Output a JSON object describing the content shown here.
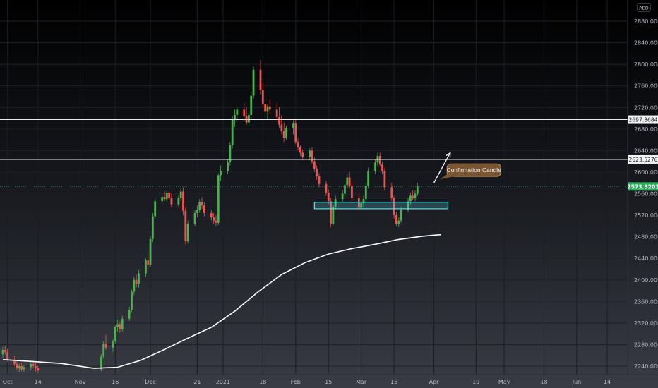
{
  "currency_label": "AED",
  "chart_data": {
    "type": "candlestick",
    "ylim": [
      2225,
      2905
    ],
    "y_ticks": [
      2880,
      2840,
      2800,
      2760,
      2720,
      2680,
      2640,
      2600,
      2560,
      2520,
      2480,
      2440,
      2400,
      2360,
      2320,
      2280,
      2240
    ],
    "x_ticks": [
      {
        "date": "2020-10-01",
        "label": "Oct"
      },
      {
        "date": "2020-10-14",
        "label": "14"
      },
      {
        "date": "2020-11-01",
        "label": "Nov"
      },
      {
        "date": "2020-11-16",
        "label": "16"
      },
      {
        "date": "2020-12-01",
        "label": "Dec"
      },
      {
        "date": "2020-12-21",
        "label": "21"
      },
      {
        "date": "2021-01-01",
        "label": "2021"
      },
      {
        "date": "2021-01-18",
        "label": "18"
      },
      {
        "date": "2021-02-01",
        "label": "Feb"
      },
      {
        "date": "2021-02-15",
        "label": "15"
      },
      {
        "date": "2021-03-01",
        "label": "Mar"
      },
      {
        "date": "2021-03-15",
        "label": "15"
      },
      {
        "date": "2021-04-01",
        "label": "Apr"
      },
      {
        "date": "2021-04-19",
        "label": "19"
      },
      {
        "date": "2021-05-01",
        "label": "May"
      },
      {
        "date": "2021-05-18",
        "label": "18"
      },
      {
        "date": "2021-06-01",
        "label": "Jun"
      },
      {
        "date": "2021-06-14",
        "label": "14"
      }
    ],
    "ohlc_dates": [
      "2020-09-29",
      "2020-09-30",
      "2020-10-01",
      "2020-10-04",
      "2020-10-05",
      "2020-10-06",
      "2020-10-07",
      "2020-10-08",
      "2020-10-11",
      "2020-10-12",
      "2020-10-13",
      "2020-10-14",
      "2020-11-10",
      "2020-11-11",
      "2020-11-12",
      "2020-11-15",
      "2020-11-16",
      "2020-11-17",
      "2020-11-18",
      "2020-11-19",
      "2020-11-22",
      "2020-11-23",
      "2020-11-24",
      "2020-11-25",
      "2020-11-26",
      "2020-11-29",
      "2020-11-30",
      "2020-12-01",
      "2020-12-02",
      "2020-12-03",
      "2020-12-06",
      "2020-12-07",
      "2020-12-08",
      "2020-12-09",
      "2020-12-10",
      "2020-12-13",
      "2020-12-14",
      "2020-12-15",
      "2020-12-16",
      "2020-12-17",
      "2020-12-20",
      "2020-12-21",
      "2020-12-22",
      "2020-12-23",
      "2020-12-24",
      "2020-12-27",
      "2020-12-28",
      "2020-12-29",
      "2020-12-30",
      "2020-12-31",
      "2021-01-03",
      "2021-01-04",
      "2021-01-05",
      "2021-01-06",
      "2021-01-07",
      "2021-01-10",
      "2021-01-11",
      "2021-01-12",
      "2021-01-13",
      "2021-01-14",
      "2021-01-17",
      "2021-01-18",
      "2021-01-19",
      "2021-01-20",
      "2021-01-21",
      "2021-01-24",
      "2021-01-25",
      "2021-01-26",
      "2021-01-27",
      "2021-01-28",
      "2021-01-31",
      "2021-02-01",
      "2021-02-02",
      "2021-02-03",
      "2021-02-04",
      "2021-02-07",
      "2021-02-08",
      "2021-02-09",
      "2021-02-10",
      "2021-02-11",
      "2021-02-14",
      "2021-02-15",
      "2021-02-16",
      "2021-02-17",
      "2021-02-18",
      "2021-02-21",
      "2021-02-22",
      "2021-02-23",
      "2021-02-24",
      "2021-02-25",
      "2021-02-28",
      "2021-03-01",
      "2021-03-02",
      "2021-03-03",
      "2021-03-04",
      "2021-03-07",
      "2021-03-08",
      "2021-03-09",
      "2021-03-10",
      "2021-03-11",
      "2021-03-14",
      "2021-03-15",
      "2021-03-16",
      "2021-03-17",
      "2021-03-18",
      "2021-03-21",
      "2021-03-22",
      "2021-03-23",
      "2021-03-24",
      "2021-03-25",
      "2021-03-28",
      "2021-03-29",
      "2021-03-30",
      "2021-03-31",
      "2021-04-01",
      "2021-04-04"
    ],
    "ohlc": [
      [
        2262,
        2276,
        2256,
        2270
      ],
      [
        2270,
        2278,
        2262,
        2266
      ],
      [
        2266,
        2272,
        2248,
        2252
      ],
      [
        2252,
        2260,
        2240,
        2244
      ],
      [
        2244,
        2250,
        2232,
        2236
      ],
      [
        2236,
        2244,
        2228,
        2240
      ],
      [
        2240,
        2246,
        2230,
        2234
      ],
      [
        2234,
        2242,
        2228,
        2238
      ],
      [
        2238,
        2248,
        2232,
        2244
      ],
      [
        2244,
        2250,
        2236,
        2240
      ],
      [
        2240,
        2246,
        2230,
        2236
      ],
      [
        2236,
        2242,
        2226,
        2232
      ],
      [
        2234,
        2262,
        2230,
        2258
      ],
      [
        2258,
        2286,
        2254,
        2282
      ],
      [
        2282,
        2298,
        2270,
        2274
      ],
      [
        2274,
        2290,
        2266,
        2286
      ],
      [
        2286,
        2316,
        2282,
        2312
      ],
      [
        2312,
        2326,
        2304,
        2318
      ],
      [
        2318,
        2324,
        2302,
        2308
      ],
      [
        2308,
        2334,
        2304,
        2328
      ],
      [
        2328,
        2350,
        2324,
        2344
      ],
      [
        2344,
        2382,
        2340,
        2378
      ],
      [
        2378,
        2406,
        2372,
        2400
      ],
      [
        2400,
        2410,
        2386,
        2392
      ],
      [
        2392,
        2418,
        2386,
        2412
      ],
      [
        2412,
        2440,
        2406,
        2436
      ],
      [
        2436,
        2450,
        2420,
        2428
      ],
      [
        2428,
        2482,
        2424,
        2476
      ],
      [
        2476,
        2524,
        2470,
        2518
      ],
      [
        2518,
        2552,
        2512,
        2546
      ],
      [
        2546,
        2560,
        2540,
        2554
      ],
      [
        2554,
        2564,
        2546,
        2550
      ],
      [
        2550,
        2566,
        2544,
        2562
      ],
      [
        2562,
        2572,
        2548,
        2552
      ],
      [
        2552,
        2560,
        2534,
        2540
      ],
      [
        2540,
        2556,
        2536,
        2552
      ],
      [
        2552,
        2570,
        2546,
        2564
      ],
      [
        2564,
        2572,
        2520,
        2528
      ],
      [
        2528,
        2534,
        2466,
        2472
      ],
      [
        2472,
        2510,
        2468,
        2504
      ],
      [
        2504,
        2530,
        2500,
        2524
      ],
      [
        2524,
        2538,
        2516,
        2530
      ],
      [
        2530,
        2550,
        2524,
        2544
      ],
      [
        2544,
        2554,
        2532,
        2538
      ],
      [
        2538,
        2544,
        2518,
        2524
      ],
      [
        2524,
        2530,
        2510,
        2516
      ],
      [
        2516,
        2524,
        2504,
        2510
      ],
      [
        2510,
        2520,
        2500,
        2506
      ],
      [
        2506,
        2598,
        2502,
        2594
      ],
      [
        2594,
        2612,
        2584,
        2602
      ],
      [
        2602,
        2624,
        2596,
        2618
      ],
      [
        2618,
        2656,
        2612,
        2650
      ],
      [
        2650,
        2704,
        2644,
        2698
      ],
      [
        2698,
        2716,
        2684,
        2706
      ],
      [
        2706,
        2722,
        2696,
        2716
      ],
      [
        2716,
        2728,
        2696,
        2704
      ],
      [
        2704,
        2720,
        2688,
        2692
      ],
      [
        2692,
        2710,
        2684,
        2706
      ],
      [
        2706,
        2748,
        2700,
        2742
      ],
      [
        2742,
        2796,
        2736,
        2790
      ],
      [
        2790,
        2808,
        2744,
        2752
      ],
      [
        2752,
        2766,
        2720,
        2726
      ],
      [
        2726,
        2736,
        2700,
        2712
      ],
      [
        2712,
        2726,
        2698,
        2722
      ],
      [
        2722,
        2734,
        2708,
        2716
      ],
      [
        2716,
        2728,
        2696,
        2702
      ],
      [
        2702,
        2720,
        2682,
        2688
      ],
      [
        2688,
        2706,
        2670,
        2676
      ],
      [
        2676,
        2692,
        2656,
        2664
      ],
      [
        2664,
        2686,
        2660,
        2682
      ],
      [
        2682,
        2696,
        2670,
        2690
      ],
      [
        2690,
        2698,
        2652,
        2656
      ],
      [
        2656,
        2662,
        2640,
        2646
      ],
      [
        2646,
        2650,
        2630,
        2636
      ],
      [
        2636,
        2642,
        2622,
        2628
      ],
      [
        2628,
        2644,
        2622,
        2640
      ],
      [
        2640,
        2646,
        2616,
        2620
      ],
      [
        2620,
        2628,
        2600,
        2606
      ],
      [
        2606,
        2612,
        2586,
        2592
      ],
      [
        2592,
        2598,
        2572,
        2578
      ],
      [
        2578,
        2584,
        2556,
        2562
      ],
      [
        2562,
        2568,
        2540,
        2546
      ],
      [
        2546,
        2552,
        2498,
        2504
      ],
      [
        2504,
        2540,
        2500,
        2536
      ],
      [
        2536,
        2556,
        2530,
        2550
      ],
      [
        2550,
        2566,
        2544,
        2560
      ],
      [
        2560,
        2582,
        2554,
        2576
      ],
      [
        2576,
        2596,
        2570,
        2590
      ],
      [
        2590,
        2600,
        2570,
        2574
      ],
      [
        2574,
        2580,
        2546,
        2552
      ],
      [
        2552,
        2560,
        2528,
        2534
      ],
      [
        2534,
        2548,
        2528,
        2542
      ],
      [
        2542,
        2556,
        2534,
        2550
      ],
      [
        2550,
        2580,
        2544,
        2574
      ],
      [
        2574,
        2608,
        2570,
        2602
      ],
      [
        2602,
        2624,
        2596,
        2618
      ],
      [
        2618,
        2636,
        2612,
        2630
      ],
      [
        2630,
        2636,
        2610,
        2614
      ],
      [
        2614,
        2620,
        2596,
        2602
      ],
      [
        2602,
        2608,
        2566,
        2572
      ],
      [
        2572,
        2580,
        2546,
        2552
      ],
      [
        2552,
        2556,
        2514,
        2520
      ],
      [
        2520,
        2526,
        2500,
        2504
      ],
      [
        2504,
        2516,
        2498,
        2510
      ],
      [
        2510,
        2536,
        2506,
        2530
      ],
      [
        2530,
        2552,
        2526,
        2546
      ],
      [
        2546,
        2562,
        2540,
        2556
      ],
      [
        2556,
        2566,
        2548,
        2552
      ],
      [
        2552,
        2566,
        2546,
        2560
      ],
      [
        2560,
        2580,
        2556,
        2573.3201
      ]
    ],
    "moving_average": {
      "dates": [
        "2020-09-29",
        "2020-10-10",
        "2020-10-24",
        "2020-11-07",
        "2020-11-17",
        "2020-11-27",
        "2020-12-07",
        "2020-12-17",
        "2020-12-27",
        "2021-01-06",
        "2021-01-16",
        "2021-01-26",
        "2021-02-05",
        "2021-02-15",
        "2021-02-25",
        "2021-03-07",
        "2021-03-17",
        "2021-03-27",
        "2021-04-04"
      ],
      "values": [
        2252,
        2249,
        2245,
        2236,
        2238,
        2251,
        2271,
        2292,
        2312,
        2342,
        2378,
        2410,
        2432,
        2448,
        2458,
        2466,
        2475,
        2481,
        2484
      ]
    },
    "horizontal_lines": [
      2697.3684,
      2623.5276
    ],
    "last_price": 2573.3201,
    "price_labels": [
      {
        "value": 2697.3684,
        "label": "2697.3684",
        "style": "light"
      },
      {
        "value": 2623.5276,
        "label": "2623.5276",
        "style": "light"
      },
      {
        "value": 2573.3201,
        "label": "2573.3201",
        "style": "green"
      }
    ],
    "zone": {
      "start": "2021-02-09",
      "end": "2021-04-07",
      "low": 2532,
      "high": 2544
    },
    "arrow": {
      "from": [
        "2021-04-01",
        2580
      ],
      "to": [
        "2021-04-08",
        2636
      ]
    },
    "annotation": {
      "text": "Confirmation Candle",
      "date": "2021-04-03",
      "value": 2584
    },
    "colors": {
      "up": "#4caf50",
      "down": "#ef5350",
      "ma": "#ffffff",
      "zone": "#5ee0e6",
      "note": "#7b5634",
      "last": "#2eaa5f"
    }
  }
}
